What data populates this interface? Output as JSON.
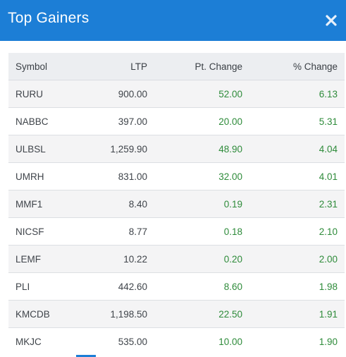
{
  "header": {
    "title": "Top Gainers",
    "close_icon": "close-icon"
  },
  "table": {
    "columns": [
      "Symbol",
      "LTP",
      "Pt. Change",
      "% Change"
    ],
    "rows": [
      {
        "symbol": "RURU",
        "ltp": "900.00",
        "pt_change": "52.00",
        "pct_change": "6.13"
      },
      {
        "symbol": "NABBC",
        "ltp": "397.00",
        "pt_change": "20.00",
        "pct_change": "5.31"
      },
      {
        "symbol": "ULBSL",
        "ltp": "1,259.90",
        "pt_change": "48.90",
        "pct_change": "4.04"
      },
      {
        "symbol": "UMRH",
        "ltp": "831.00",
        "pt_change": "32.00",
        "pct_change": "4.01"
      },
      {
        "symbol": "MMF1",
        "ltp": "8.40",
        "pt_change": "0.19",
        "pct_change": "2.31"
      },
      {
        "symbol": "NICSF",
        "ltp": "8.77",
        "pt_change": "0.18",
        "pct_change": "2.10"
      },
      {
        "symbol": "LEMF",
        "ltp": "10.22",
        "pt_change": "0.20",
        "pct_change": "2.00"
      },
      {
        "symbol": "PLI",
        "ltp": "442.60",
        "pt_change": "8.60",
        "pct_change": "1.98"
      },
      {
        "symbol": "KMCDB",
        "ltp": "1,198.50",
        "pt_change": "22.50",
        "pct_change": "1.91"
      },
      {
        "symbol": "MKJC",
        "ltp": "535.00",
        "pt_change": "10.00",
        "pct_change": "1.90"
      }
    ]
  },
  "colors": {
    "header_bg": "#1c7ed6",
    "gain": "#2e8b3a"
  }
}
